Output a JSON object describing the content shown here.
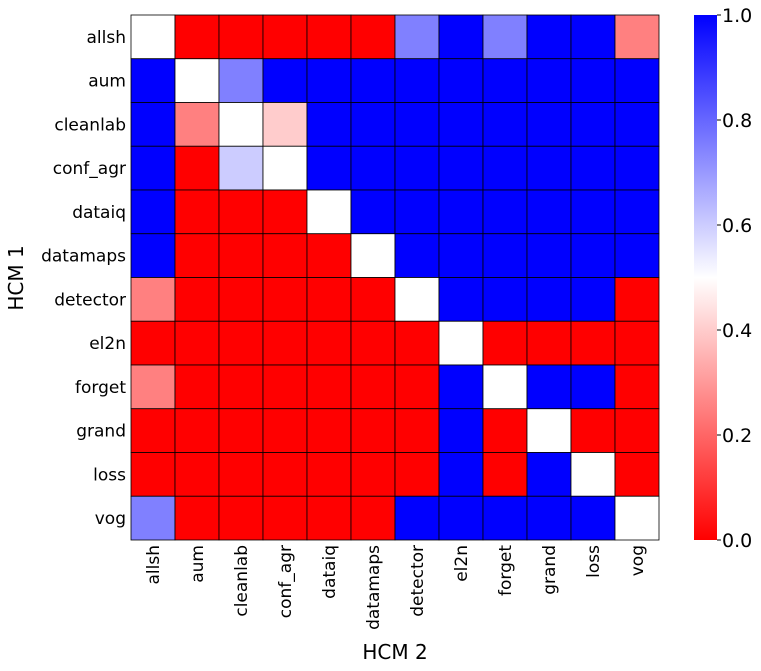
{
  "chart_data": {
    "type": "heatmap",
    "title": "",
    "xlabel": "HCM 2",
    "ylabel": "HCM 1",
    "row_labels": [
      "allsh",
      "aum",
      "cleanlab",
      "conf_agr",
      "dataiq",
      "datamaps",
      "detector",
      "el2n",
      "forget",
      "grand",
      "loss",
      "vog"
    ],
    "col_labels": [
      "allsh",
      "aum",
      "cleanlab",
      "conf_agr",
      "dataiq",
      "datamaps",
      "detector",
      "el2n",
      "forget",
      "grand",
      "loss",
      "vog"
    ],
    "values": [
      [
        0.5,
        0.0,
        0.0,
        0.0,
        0.0,
        0.0,
        0.75,
        1.0,
        0.75,
        1.0,
        1.0,
        0.25
      ],
      [
        1.0,
        0.5,
        0.75,
        1.0,
        1.0,
        1.0,
        1.0,
        1.0,
        1.0,
        1.0,
        1.0,
        1.0
      ],
      [
        1.0,
        0.25,
        0.5,
        0.4,
        1.0,
        1.0,
        1.0,
        1.0,
        1.0,
        1.0,
        1.0,
        1.0
      ],
      [
        1.0,
        0.0,
        0.6,
        0.5,
        1.0,
        1.0,
        1.0,
        1.0,
        1.0,
        1.0,
        1.0,
        1.0
      ],
      [
        1.0,
        0.0,
        0.0,
        0.0,
        0.5,
        1.0,
        1.0,
        1.0,
        1.0,
        1.0,
        1.0,
        1.0
      ],
      [
        1.0,
        0.0,
        0.0,
        0.0,
        0.0,
        0.5,
        1.0,
        1.0,
        1.0,
        1.0,
        1.0,
        1.0
      ],
      [
        0.25,
        0.0,
        0.0,
        0.0,
        0.0,
        0.0,
        0.5,
        1.0,
        1.0,
        1.0,
        1.0,
        0.0
      ],
      [
        0.0,
        0.0,
        0.0,
        0.0,
        0.0,
        0.0,
        0.0,
        0.5,
        0.0,
        0.0,
        0.0,
        0.0
      ],
      [
        0.25,
        0.0,
        0.0,
        0.0,
        0.0,
        0.0,
        0.0,
        1.0,
        0.5,
        1.0,
        1.0,
        0.0
      ],
      [
        0.0,
        0.0,
        0.0,
        0.0,
        0.0,
        0.0,
        0.0,
        1.0,
        0.0,
        0.5,
        0.0,
        0.0
      ],
      [
        0.0,
        0.0,
        0.0,
        0.0,
        0.0,
        0.0,
        0.0,
        1.0,
        0.0,
        1.0,
        0.5,
        0.0
      ],
      [
        0.75,
        0.0,
        0.0,
        0.0,
        0.0,
        0.0,
        1.0,
        1.0,
        1.0,
        1.0,
        1.0,
        0.5
      ]
    ],
    "colormap": "bwr_r",
    "color_low": "#ff0000",
    "color_mid": "#ffffff",
    "color_high": "#0000ff",
    "colorbar": {
      "range": [
        0.0,
        1.0
      ],
      "ticks": [
        0.0,
        0.2,
        0.4,
        0.6,
        0.8,
        1.0
      ],
      "tick_labels": [
        "0.0",
        "0.2",
        "0.4",
        "0.6",
        "0.8",
        "1.0"
      ]
    },
    "grid": false
  }
}
